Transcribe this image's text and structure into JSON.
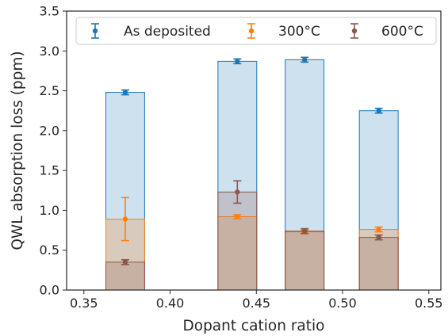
{
  "chart_data": {
    "type": "bar",
    "xlabel": "Dopant cation ratio",
    "ylabel": "QWL absorption loss (ppm)",
    "xlim": [
      0.34,
      0.557
    ],
    "ylim": [
      0.0,
      3.5
    ],
    "bar_width": 0.0225,
    "xticks": [
      "0.35",
      "0.40",
      "0.45",
      "0.50",
      "0.55"
    ],
    "xtick_values": [
      0.35,
      0.4,
      0.45,
      0.5,
      0.55
    ],
    "yticks": [
      "0.0",
      "0.5",
      "1.0",
      "1.5",
      "2.0",
      "2.5",
      "3.0",
      "3.5"
    ],
    "ytick_values": [
      0.0,
      0.5,
      1.0,
      1.5,
      2.0,
      2.5,
      3.0,
      3.5
    ],
    "legend_position": "top",
    "grid": false,
    "series": [
      {
        "name": "As deposited",
        "color": "#1f77b4",
        "x": [
          0.374,
          0.439,
          0.478,
          0.521
        ],
        "values": [
          2.48,
          2.87,
          2.89,
          2.25
        ],
        "errors": [
          0.03,
          0.03,
          0.03,
          0.03
        ]
      },
      {
        "name": "300°C",
        "color": "#ff7f0e",
        "x": [
          0.374,
          0.439,
          0.478,
          0.521
        ],
        "values": [
          0.89,
          0.92,
          0.73,
          0.76
        ],
        "errors": [
          0.27,
          0.025,
          0.025,
          0.03
        ]
      },
      {
        "name": "600°C",
        "color": "#8c564b",
        "x": [
          0.374,
          0.439,
          0.478,
          0.521
        ],
        "values": [
          0.35,
          1.23,
          0.74,
          0.66
        ],
        "errors": [
          0.03,
          0.14,
          0.03,
          0.03
        ]
      }
    ]
  }
}
